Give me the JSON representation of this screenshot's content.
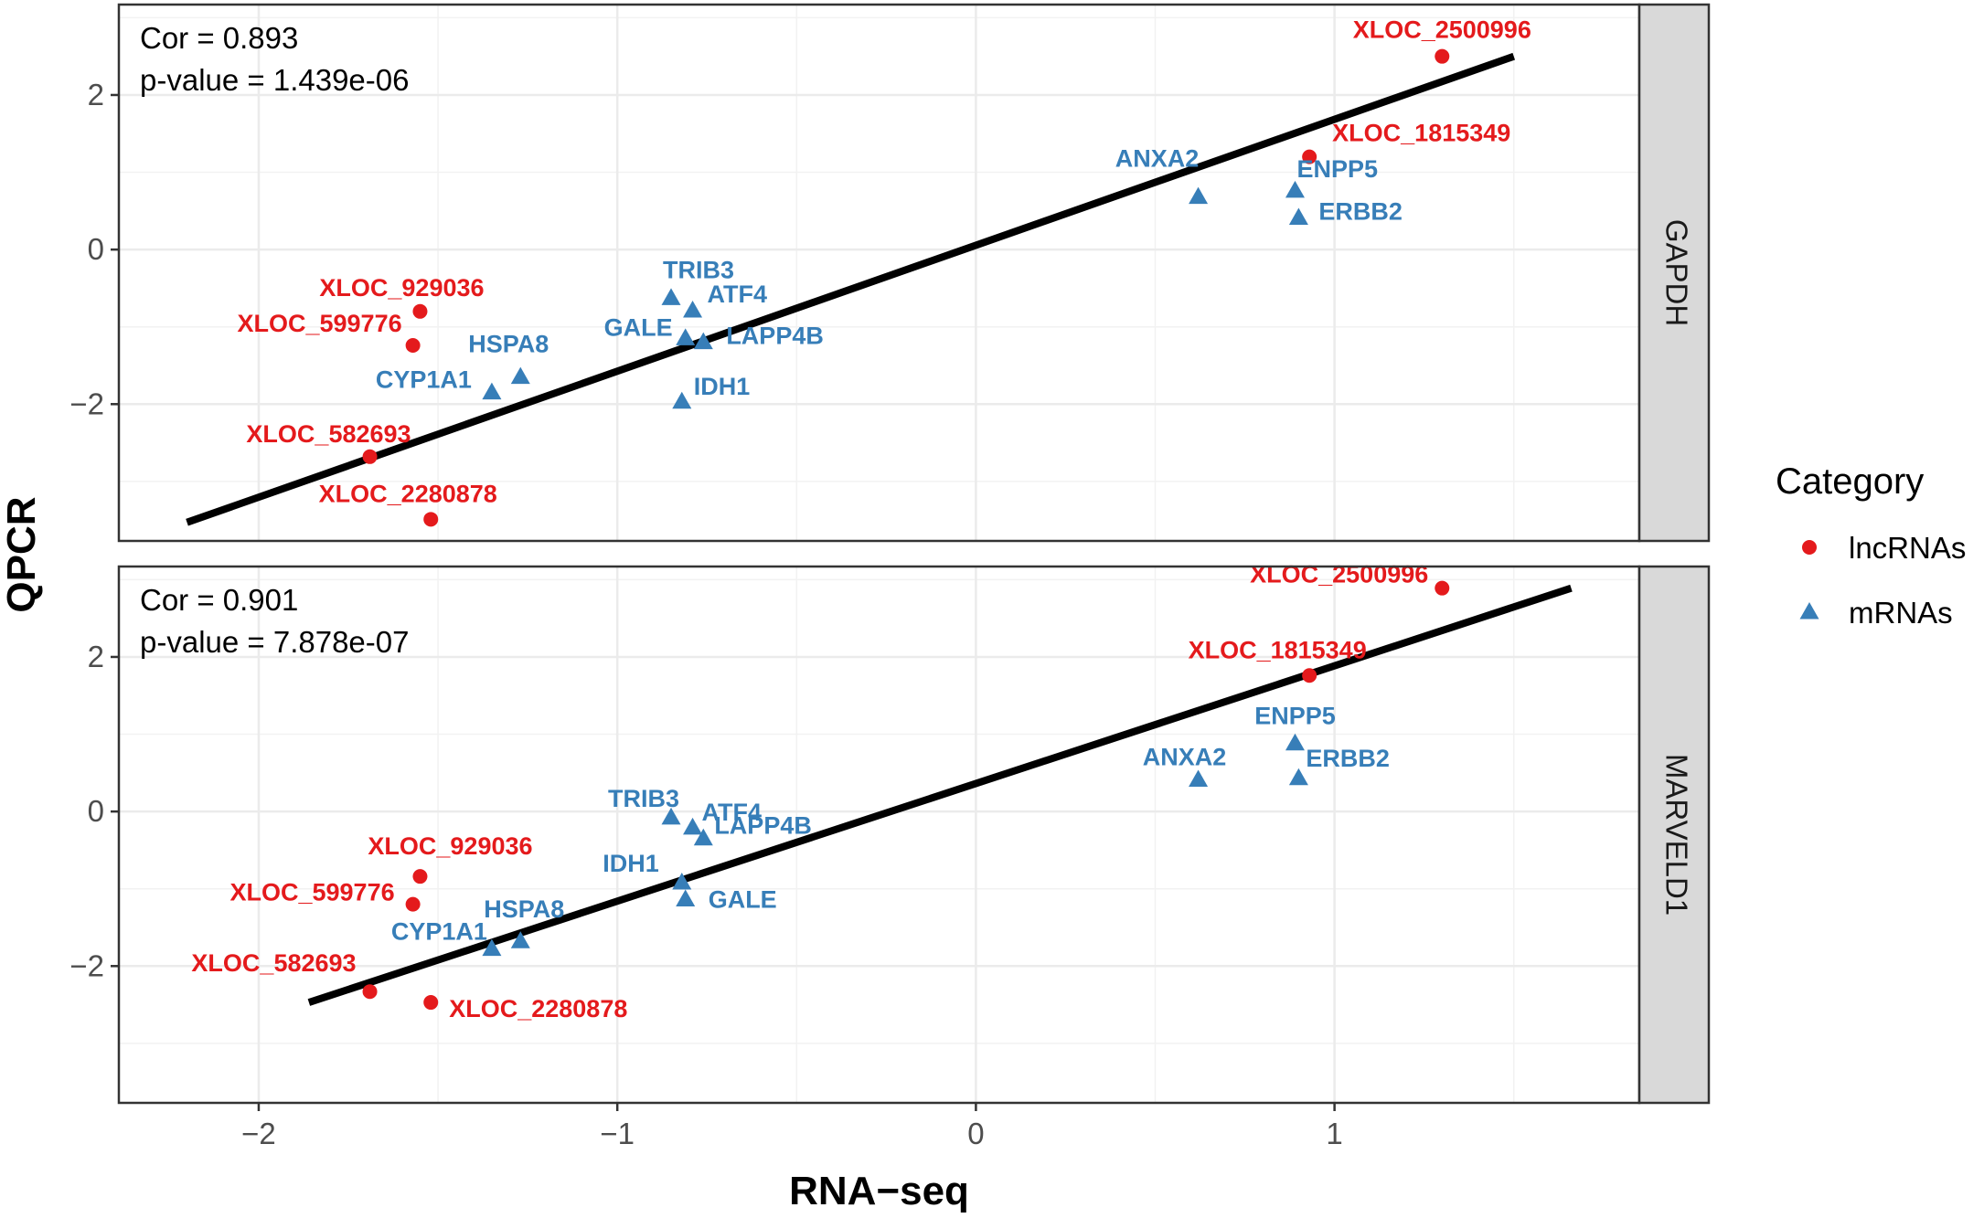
{
  "chart_data": {
    "type": "scatter",
    "xlabel": "RNA−seq",
    "ylabel": "QPCR",
    "xlim": [
      -2.39,
      1.85
    ],
    "x_ticks": [
      -2,
      -1,
      0,
      1
    ],
    "x_tick_labels": [
      "−2",
      "−1",
      "0",
      "1"
    ],
    "y_ticks": [
      -2,
      0,
      2
    ],
    "y_tick_labels": [
      "−2",
      "0",
      "2"
    ],
    "colors": {
      "lncRNAs": "#e41a1c",
      "mRNAs": "#377eb8"
    },
    "legend": {
      "title": "Category",
      "position": "right",
      "entries": [
        {
          "label": "lncRNAs",
          "shape": "circle"
        },
        {
          "label": "mRNAs",
          "shape": "triangle"
        }
      ]
    },
    "panels": [
      {
        "strip": "GAPDH",
        "cor_text": "Cor = 0.893",
        "p_text": "p-value = 1.439e-06",
        "ylim": [
          -3.77,
          3.17
        ],
        "fit_line": {
          "x": [
            -2.2,
            1.5
          ],
          "y": [
            -3.53,
            2.5
          ]
        },
        "points": [
          {
            "label": "XLOC_2500996",
            "category": "lncRNAs",
            "x": 1.3,
            "y": 2.5
          },
          {
            "label": "XLOC_1815349",
            "category": "lncRNAs",
            "x": 0.93,
            "y": 1.2
          },
          {
            "label": "XLOC_929036",
            "category": "lncRNAs",
            "x": -1.55,
            "y": -0.8
          },
          {
            "label": "XLOC_599776",
            "category": "lncRNAs",
            "x": -1.57,
            "y": -1.24
          },
          {
            "label": "XLOC_582693",
            "category": "lncRNAs",
            "x": -1.69,
            "y": -2.68
          },
          {
            "label": "XLOC_2280878",
            "category": "lncRNAs",
            "x": -1.52,
            "y": -3.49
          },
          {
            "label": "ANXA2",
            "category": "mRNAs",
            "x": 0.62,
            "y": 0.68
          },
          {
            "label": "ENPP5",
            "category": "mRNAs",
            "x": 0.89,
            "y": 0.76
          },
          {
            "label": "ERBB2",
            "category": "mRNAs",
            "x": 0.9,
            "y": 0.41
          },
          {
            "label": "TRIB3",
            "category": "mRNAs",
            "x": -0.85,
            "y": -0.63
          },
          {
            "label": "ATF4",
            "category": "mRNAs",
            "x": -0.79,
            "y": -0.79
          },
          {
            "label": "GALE",
            "category": "mRNAs",
            "x": -0.81,
            "y": -1.15
          },
          {
            "label": "LAPP4B",
            "category": "mRNAs",
            "x": -0.76,
            "y": -1.2
          },
          {
            "label": "HSPA8",
            "category": "mRNAs",
            "x": -1.27,
            "y": -1.65
          },
          {
            "label": "CYP1A1",
            "category": "mRNAs",
            "x": -1.35,
            "y": -1.85
          },
          {
            "label": "IDH1",
            "category": "mRNAs",
            "x": -0.82,
            "y": -1.97
          }
        ]
      },
      {
        "strip": "MARVELD1",
        "cor_text": "Cor = 0.901",
        "p_text": "p-value = 7.878e-07",
        "ylim": [
          -3.77,
          3.17
        ],
        "fit_line": {
          "x": [
            -1.86,
            1.66
          ],
          "y": [
            -2.47,
            2.89
          ]
        },
        "points": [
          {
            "label": "XLOC_2500996",
            "category": "lncRNAs",
            "x": 1.3,
            "y": 2.89
          },
          {
            "label": "XLOC_1815349",
            "category": "lncRNAs",
            "x": 0.93,
            "y": 1.76
          },
          {
            "label": "XLOC_929036",
            "category": "lncRNAs",
            "x": -1.55,
            "y": -0.84
          },
          {
            "label": "XLOC_599776",
            "category": "lncRNAs",
            "x": -1.57,
            "y": -1.2
          },
          {
            "label": "XLOC_582693",
            "category": "lncRNAs",
            "x": -1.69,
            "y": -2.33
          },
          {
            "label": "XLOC_2280878",
            "category": "lncRNAs",
            "x": -1.52,
            "y": -2.47
          },
          {
            "label": "ENPP5",
            "category": "mRNAs",
            "x": 0.89,
            "y": 0.88
          },
          {
            "label": "ANXA2",
            "category": "mRNAs",
            "x": 0.62,
            "y": 0.41
          },
          {
            "label": "ERBB2",
            "category": "mRNAs",
            "x": 0.9,
            "y": 0.43
          },
          {
            "label": "TRIB3",
            "category": "mRNAs",
            "x": -0.85,
            "y": -0.08
          },
          {
            "label": "ATF4",
            "category": "mRNAs",
            "x": -0.79,
            "y": -0.21
          },
          {
            "label": "LAPP4B",
            "category": "mRNAs",
            "x": -0.76,
            "y": -0.35
          },
          {
            "label": "IDH1",
            "category": "mRNAs",
            "x": -0.82,
            "y": -0.92
          },
          {
            "label": "GALE",
            "category": "mRNAs",
            "x": -0.81,
            "y": -1.14
          },
          {
            "label": "HSPA8",
            "category": "mRNAs",
            "x": -1.27,
            "y": -1.68
          },
          {
            "label": "CYP1A1",
            "category": "mRNAs",
            "x": -1.35,
            "y": -1.78
          }
        ]
      }
    ]
  }
}
